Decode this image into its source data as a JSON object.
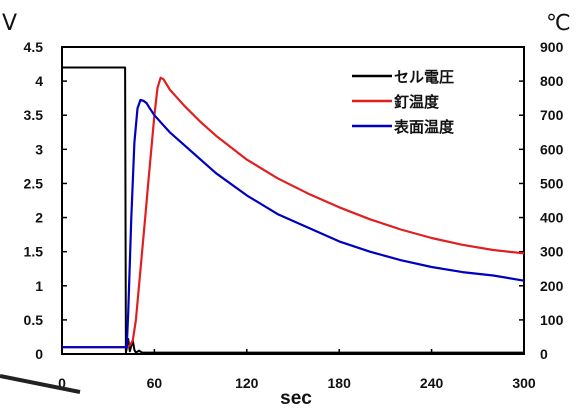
{
  "chart_data": {
    "type": "line",
    "units": {
      "left": "V",
      "right": "℃",
      "x": "sec"
    },
    "x_ticks": [
      "0",
      "60",
      "120",
      "180",
      "240",
      "300"
    ],
    "y_left_ticks": [
      "0",
      "0.5",
      "1",
      "1.5",
      "2",
      "2.5",
      "3",
      "3.5",
      "4",
      "4.5"
    ],
    "y_right_ticks": [
      "0",
      "100",
      "200",
      "300",
      "400",
      "500",
      "600",
      "700",
      "800",
      "900"
    ],
    "xlim": [
      0,
      300
    ],
    "ylim_left": [
      0,
      4.5
    ],
    "ylim_right": [
      0,
      900
    ],
    "grid": false,
    "legend_position": "top-right",
    "series": [
      {
        "name": "セル電圧",
        "axis": "left",
        "color": "#000000",
        "x": [
          0,
          41,
          41.5,
          42,
          43,
          44,
          45,
          46,
          47,
          48,
          50,
          52,
          60,
          100,
          150,
          200,
          250,
          300
        ],
        "y": [
          4.2,
          4.2,
          0.02,
          0.08,
          0.22,
          0.04,
          0.12,
          0.2,
          0.06,
          0.02,
          0.05,
          0.02,
          0.02,
          0.02,
          0.02,
          0.02,
          0.02,
          0.02
        ]
      },
      {
        "name": "釘温度",
        "axis": "right",
        "color": "#e02020",
        "x": [
          0,
          42,
          44,
          46,
          48,
          50,
          52,
          54,
          56,
          58,
          60,
          62,
          64,
          66,
          68,
          70,
          75,
          80,
          90,
          100,
          120,
          140,
          160,
          180,
          200,
          220,
          240,
          260,
          280,
          300
        ],
        "y": [
          20,
          20,
          25,
          40,
          100,
          200,
          300,
          400,
          500,
          600,
          700,
          780,
          810,
          805,
          790,
          775,
          750,
          725,
          680,
          640,
          570,
          515,
          470,
          430,
          395,
          365,
          340,
          320,
          305,
          295
        ]
      },
      {
        "name": "表面温度",
        "axis": "right",
        "color": "#0000c0",
        "x": [
          0,
          42,
          43,
          45,
          47,
          49,
          51,
          53,
          55,
          57,
          60,
          65,
          70,
          80,
          90,
          100,
          120,
          140,
          160,
          180,
          200,
          220,
          240,
          260,
          280,
          300
        ],
        "y": [
          20,
          20,
          120,
          400,
          620,
          720,
          745,
          742,
          735,
          720,
          700,
          675,
          650,
          610,
          570,
          530,
          465,
          410,
          370,
          330,
          300,
          275,
          255,
          240,
          230,
          215
        ]
      }
    ]
  }
}
